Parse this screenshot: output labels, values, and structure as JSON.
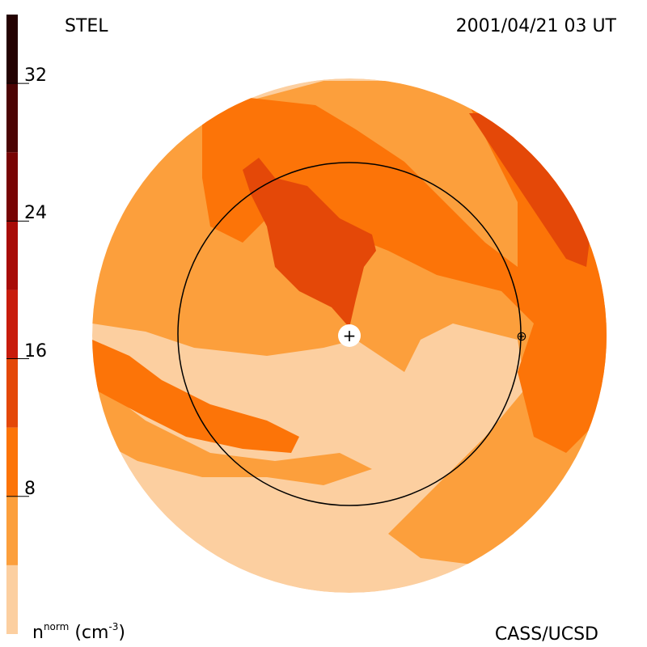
{
  "header": {
    "left_label": "STEL",
    "right_label": "2001/04/21 03 UT"
  },
  "footer": {
    "units_base": "n",
    "units_sup": "norm",
    "units_rest": "(cm",
    "units_exp": "-3",
    "units_close": ")",
    "credit": "CASS/UCSD"
  },
  "colorbar": {
    "ticks": [
      {
        "label": "32",
        "value": 32
      },
      {
        "label": "24",
        "value": 24
      },
      {
        "label": "16",
        "value": 16
      },
      {
        "label": "8",
        "value": 8
      }
    ],
    "levels": [
      {
        "value": 0,
        "color": "#fccfa0"
      },
      {
        "value": 4,
        "color": "#fc9f3c"
      },
      {
        "value": 8,
        "color": "#fc7408"
      },
      {
        "value": 12,
        "color": "#e44808"
      },
      {
        "value": 16,
        "color": "#c81c0c"
      },
      {
        "value": 20,
        "color": "#a80c08"
      },
      {
        "value": 24,
        "color": "#780404"
      },
      {
        "value": 28,
        "color": "#4c0404"
      },
      {
        "value": 32,
        "color": "#240202"
      }
    ]
  },
  "map": {
    "sun_symbol": "+",
    "earth_symbol": "⊕"
  }
}
